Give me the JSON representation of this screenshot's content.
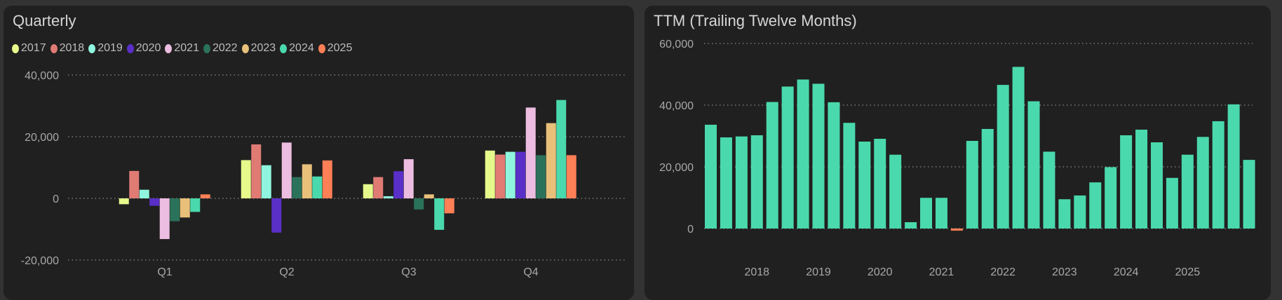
{
  "colors": {
    "page_bg": "#333333",
    "panel_bg": "#202020",
    "grid": "#8a8a8a"
  },
  "chart_data": [
    {
      "type": "bar",
      "title": "Quarterly",
      "categories": [
        "Q1",
        "Q2",
        "Q3",
        "Q4"
      ],
      "yticks": [
        -20000,
        0,
        20000,
        40000
      ],
      "ytick_labels": [
        "-20,000",
        "0",
        "20,000",
        "40,000"
      ],
      "ylim": [
        -20000,
        40000
      ],
      "grid": true,
      "legend_placement": "top-left",
      "series": [
        {
          "name": "2017",
          "color": "#e6fa8c",
          "values": [
            -1900,
            12400,
            4600,
            15500
          ]
        },
        {
          "name": "2018",
          "color": "#e07b74",
          "values": [
            8900,
            17500,
            6900,
            14200
          ]
        },
        {
          "name": "2019",
          "color": "#8ff5de",
          "values": [
            2800,
            10750,
            700,
            15100
          ]
        },
        {
          "name": "2020",
          "color": "#5a2fc8",
          "values": [
            -2400,
            -11100,
            8800,
            15100
          ]
        },
        {
          "name": "2021",
          "color": "#ecbde0",
          "values": [
            -13200,
            18100,
            12700,
            29450
          ]
        },
        {
          "name": "2022",
          "color": "#2b725a",
          "values": [
            -7400,
            6900,
            -3600,
            14000
          ]
        },
        {
          "name": "2023",
          "color": "#e8c07a",
          "values": [
            -6200,
            11050,
            1300,
            24400
          ]
        },
        {
          "name": "2024",
          "color": "#4ad9ac",
          "values": [
            -4400,
            7100,
            -10200,
            31900
          ]
        },
        {
          "name": "2025",
          "color": "#ff7f56",
          "values": [
            1300,
            12300,
            -4850,
            14000
          ]
        }
      ]
    },
    {
      "type": "bar",
      "title": "TTM (Trailing Twelve Months)",
      "yticks": [
        0,
        20000,
        40000,
        60000
      ],
      "ytick_labels": [
        "0",
        "20,000",
        "40,000",
        "60,000"
      ],
      "ylim": [
        -7000,
        60000
      ],
      "grid": true,
      "positive_color": "#4ad9ac",
      "negative_color": "#ff7f56",
      "xtick_labels": [
        "2018",
        "2019",
        "2020",
        "2021",
        "2022",
        "2023",
        "2024",
        "2025"
      ],
      "xtick_bar_index": [
        3,
        7,
        11,
        15,
        19,
        23,
        27,
        31
      ],
      "values": [
        33650,
        29550,
        29850,
        30230,
        41020,
        46030,
        48310,
        46940,
        40940,
        34260,
        28180,
        29090,
        23930,
        2050,
        9950,
        9950,
        -700,
        28410,
        32280,
        46560,
        52410,
        41250,
        24910,
        9490,
        10710,
        14960,
        19900,
        30230,
        32050,
        27950,
        16410,
        23930,
        29700,
        34790,
        40260,
        22250
      ]
    }
  ]
}
